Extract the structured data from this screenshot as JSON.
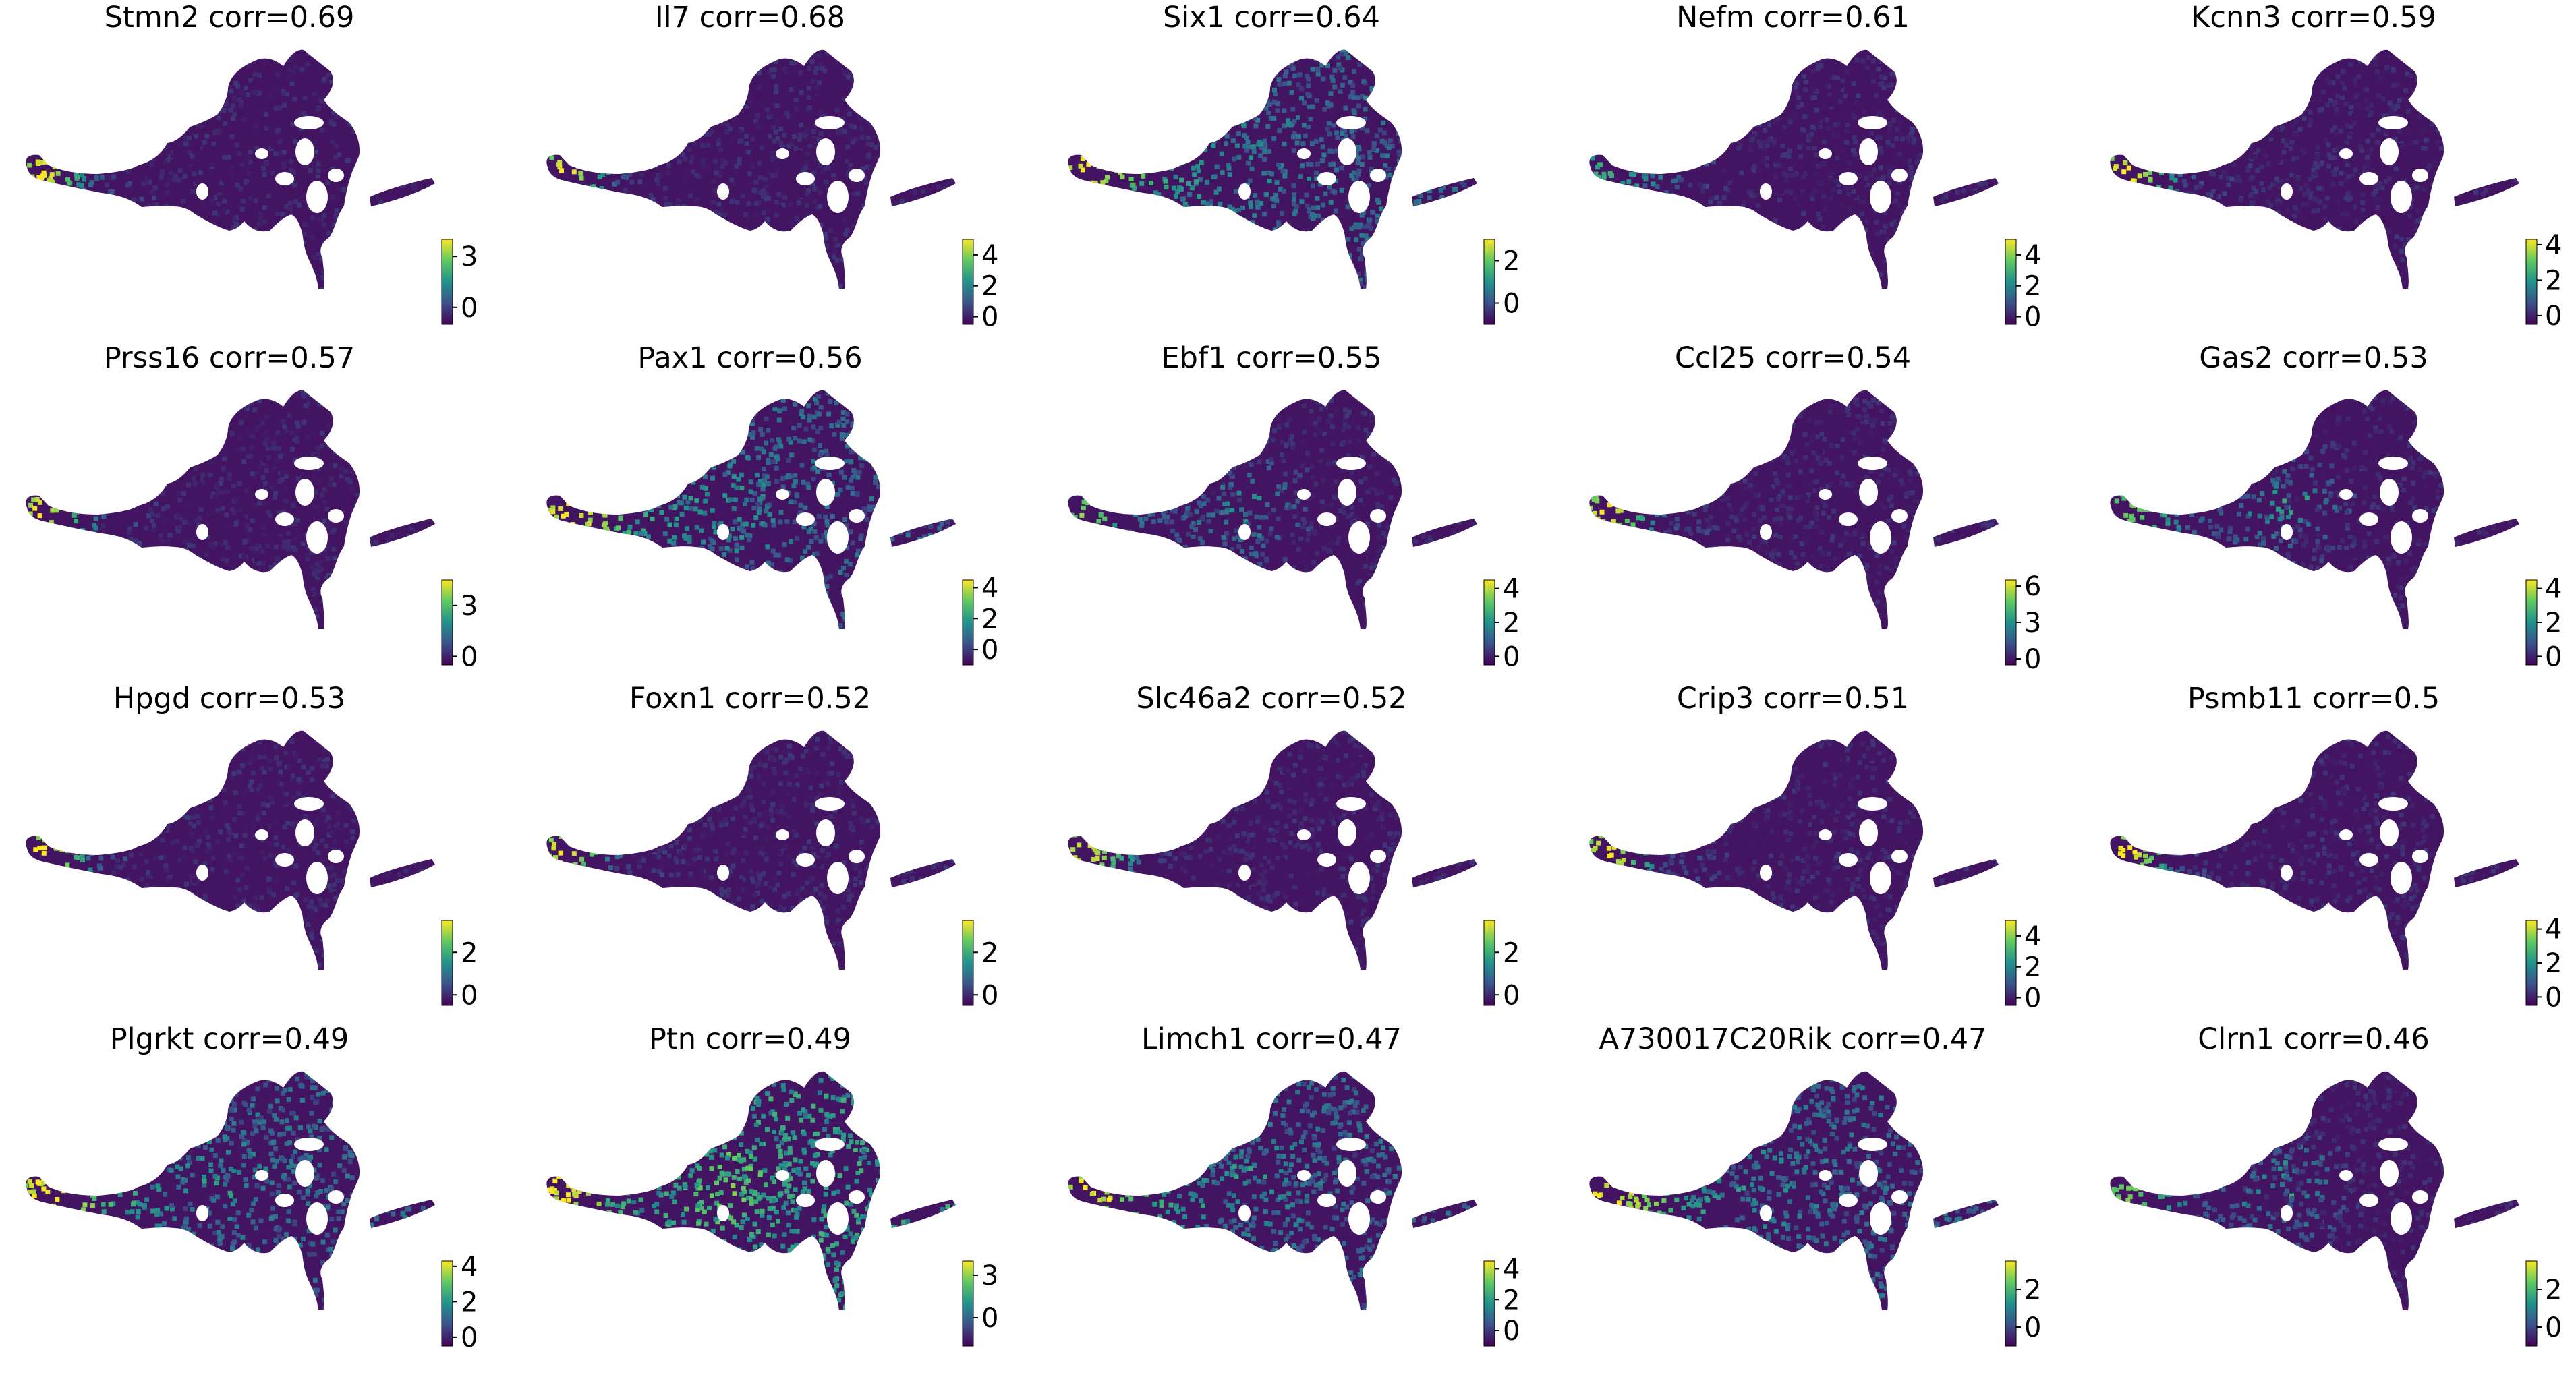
{
  "chart_data": {
    "type": "scatter",
    "description_of_marks": "UMAP embedding colored by gene expression (viridis colormap)",
    "colormap": [
      "#440154",
      "#3b528b",
      "#21918c",
      "#5ec962",
      "#fde725"
    ],
    "grid": false,
    "panels": [
      {
        "gene": "Stmn2",
        "corr": "0.69",
        "title": "Stmn2 corr=0.69",
        "ticks": [
          "3",
          "0"
        ],
        "tick_values": [
          3,
          0
        ],
        "range": [
          -1,
          4
        ],
        "pattern": "tip"
      },
      {
        "gene": "Il7",
        "corr": "0.68",
        "title": "Il7 corr=0.68",
        "ticks": [
          "4",
          "2",
          "0"
        ],
        "tick_values": [
          4,
          2,
          0
        ],
        "range": [
          -0.5,
          5
        ],
        "pattern": "tip"
      },
      {
        "gene": "Six1",
        "corr": "0.64",
        "title": "Six1 corr=0.64",
        "ticks": [
          "2",
          "0"
        ],
        "tick_values": [
          2,
          0
        ],
        "range": [
          -1,
          3
        ],
        "pattern": "broad"
      },
      {
        "gene": "Nefm",
        "corr": "0.61",
        "title": "Nefm corr=0.61",
        "ticks": [
          "4",
          "2",
          "0"
        ],
        "tick_values": [
          4,
          2,
          0
        ],
        "range": [
          -0.5,
          5
        ],
        "pattern": "low"
      },
      {
        "gene": "Kcnn3",
        "corr": "0.59",
        "title": "Kcnn3 corr=0.59",
        "ticks": [
          "4",
          "2",
          "0"
        ],
        "tick_values": [
          4,
          2,
          0
        ],
        "range": [
          -0.5,
          4.3
        ],
        "pattern": "tip"
      },
      {
        "gene": "Prss16",
        "corr": "0.57",
        "title": "Prss16 corr=0.57",
        "ticks": [
          "3",
          "0"
        ],
        "tick_values": [
          3,
          0
        ],
        "range": [
          -0.5,
          4.5
        ],
        "pattern": "tip"
      },
      {
        "gene": "Pax1",
        "corr": "0.56",
        "title": "Pax1 corr=0.56",
        "ticks": [
          "4",
          "2",
          "0"
        ],
        "tick_values": [
          4,
          2,
          0
        ],
        "range": [
          -1,
          4.5
        ],
        "pattern": "broad"
      },
      {
        "gene": "Ebf1",
        "corr": "0.55",
        "title": "Ebf1 corr=0.55",
        "ticks": [
          "4",
          "2",
          "0"
        ],
        "tick_values": [
          4,
          2,
          0
        ],
        "range": [
          -0.5,
          4.5
        ],
        "pattern": "mid"
      },
      {
        "gene": "Ccl25",
        "corr": "0.54",
        "title": "Ccl25 corr=0.54",
        "ticks": [
          "6",
          "3",
          "0"
        ],
        "tick_values": [
          6,
          3,
          0
        ],
        "range": [
          -0.5,
          6.5
        ],
        "pattern": "tip"
      },
      {
        "gene": "Gas2",
        "corr": "0.53",
        "title": "Gas2 corr=0.53",
        "ticks": [
          "4",
          "2",
          "0"
        ],
        "tick_values": [
          4,
          2,
          0
        ],
        "range": [
          -0.5,
          4.5
        ],
        "pattern": "mid"
      },
      {
        "gene": "Hpgd",
        "corr": "0.53",
        "title": "Hpgd corr=0.53",
        "ticks": [
          "2",
          "0"
        ],
        "tick_values": [
          2,
          0
        ],
        "range": [
          -0.5,
          3.5
        ],
        "pattern": "tip"
      },
      {
        "gene": "Foxn1",
        "corr": "0.52",
        "title": "Foxn1 corr=0.52",
        "ticks": [
          "2",
          "0"
        ],
        "tick_values": [
          2,
          0
        ],
        "range": [
          -0.5,
          3.5
        ],
        "pattern": "tip"
      },
      {
        "gene": "Slc46a2",
        "corr": "0.52",
        "title": "Slc46a2 corr=0.52",
        "ticks": [
          "2",
          "0"
        ],
        "tick_values": [
          2,
          0
        ],
        "range": [
          -0.5,
          3.5
        ],
        "pattern": "tip"
      },
      {
        "gene": "Crip3",
        "corr": "0.51",
        "title": "Crip3 corr=0.51",
        "ticks": [
          "4",
          "2",
          "0"
        ],
        "tick_values": [
          4,
          2,
          0
        ],
        "range": [
          -0.5,
          5
        ],
        "pattern": "tip"
      },
      {
        "gene": "Psmb11",
        "corr": "0.5",
        "title": "Psmb11 corr=0.5",
        "ticks": [
          "4",
          "2",
          "0"
        ],
        "tick_values": [
          4,
          2,
          0
        ],
        "range": [
          -0.5,
          4.5
        ],
        "pattern": "tip"
      },
      {
        "gene": "Plgrkt",
        "corr": "0.49",
        "title": "Plgrkt corr=0.49",
        "ticks": [
          "4",
          "2",
          "0"
        ],
        "tick_values": [
          4,
          2,
          0
        ],
        "range": [
          -0.5,
          4.3
        ],
        "pattern": "broad"
      },
      {
        "gene": "Ptn",
        "corr": "0.49",
        "title": "Ptn corr=0.49",
        "ticks": [
          "3",
          "0"
        ],
        "tick_values": [
          3,
          0
        ],
        "range": [
          -2,
          4
        ],
        "pattern": "high"
      },
      {
        "gene": "Limch1",
        "corr": "0.47",
        "title": "Limch1 corr=0.47",
        "ticks": [
          "4",
          "2",
          "0"
        ],
        "tick_values": [
          4,
          2,
          0
        ],
        "range": [
          -1,
          4.5
        ],
        "pattern": "broad"
      },
      {
        "gene": "A730017C20Rik",
        "corr": "0.47",
        "title": "A730017C20Rik corr=0.47",
        "ticks": [
          "2",
          "0"
        ],
        "tick_values": [
          2,
          0
        ],
        "range": [
          -1,
          3.5
        ],
        "pattern": "broad"
      },
      {
        "gene": "Clrn1",
        "corr": "0.46",
        "title": "Clrn1 corr=0.46",
        "ticks": [
          "2",
          "0"
        ],
        "tick_values": [
          2,
          0
        ],
        "range": [
          -1,
          3.5
        ],
        "pattern": "mid"
      }
    ]
  }
}
